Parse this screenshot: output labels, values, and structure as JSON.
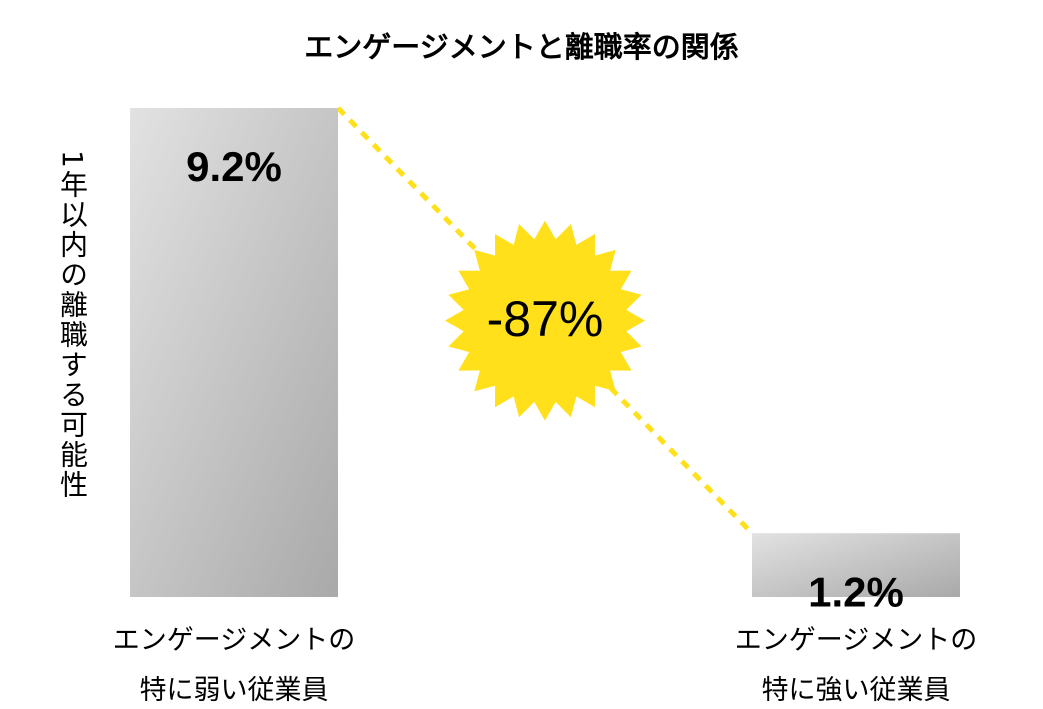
{
  "chart_data": {
    "type": "bar",
    "title": "エンゲージメントと離職率の関係",
    "y_label": "1年以内の離職する可能性",
    "categories": [
      "エンゲージメントの\n特に弱い従業員",
      "エンゲージメントの\n特に強い従業員"
    ],
    "values": [
      9.2,
      1.2
    ],
    "value_labels": [
      "9.2%",
      "1.2%"
    ],
    "annotation": "-87%",
    "annotation_color": "#ffe01a"
  }
}
